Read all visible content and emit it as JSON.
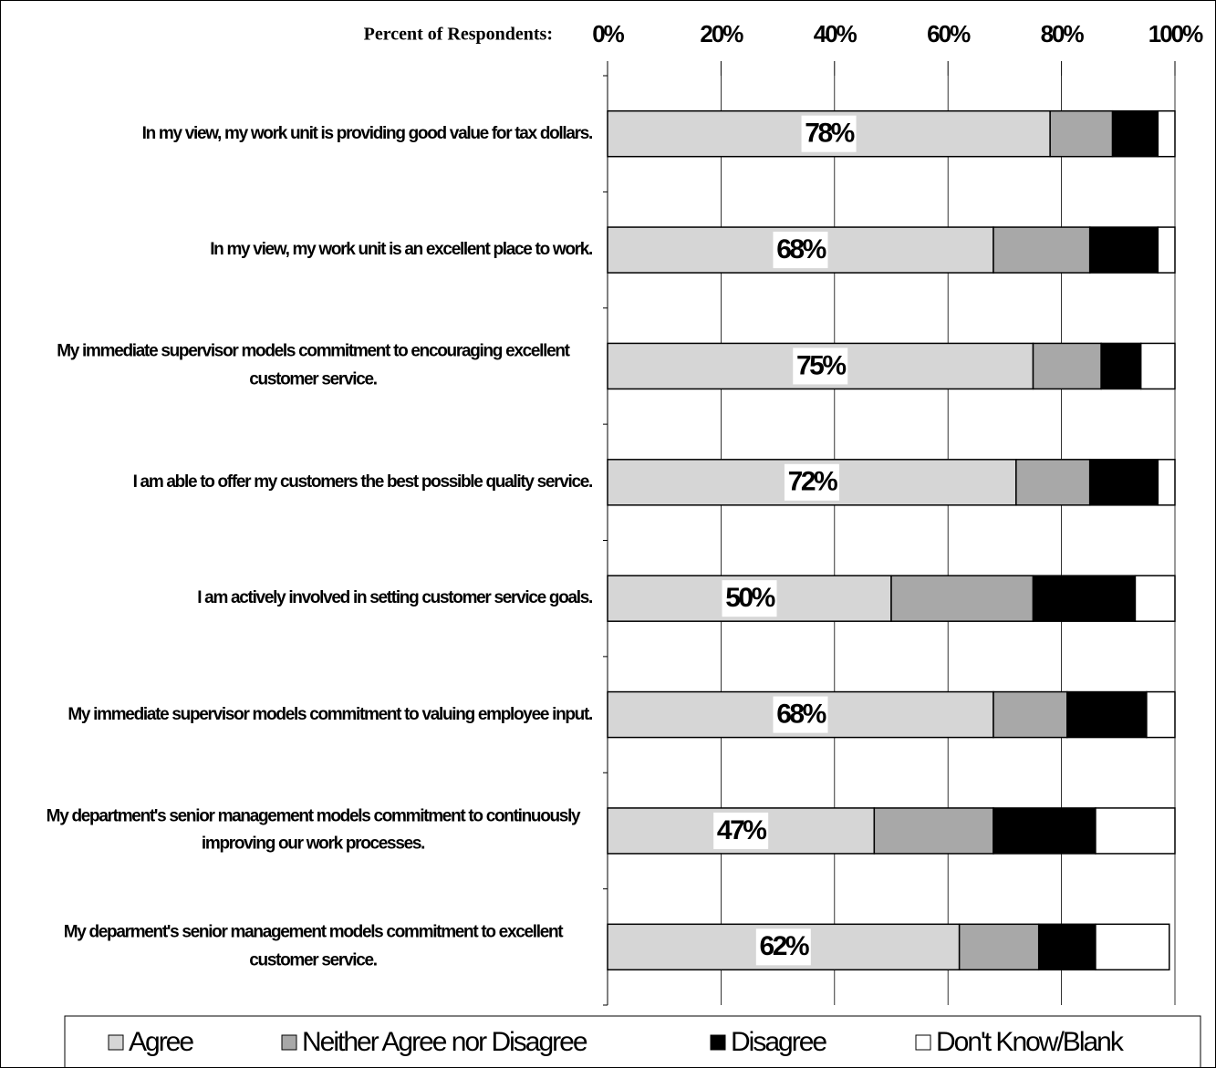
{
  "chart_data": {
    "type": "stacked-bar-horizontal",
    "x_label": "Percent of Respondents:",
    "categories": [
      "In my view, my work unit is providing good value for tax dollars.",
      "In my view, my work unit is an excellent place to work.",
      "My immediate supervisor models commitment to encouraging excellent customer service.",
      "I am able to offer my customers the best possible quality service.",
      "I am actively involved in setting customer service goals.",
      "My immediate supervisor models commitment to valuing employee input.",
      "My department's senior management models commitment to continuously improving our work processes.",
      "My deparment's senior management models commitment to excellent customer service."
    ],
    "series": [
      {
        "name": "Agree",
        "color": "#d6d6d6",
        "values": [
          78,
          68,
          75,
          72,
          50,
          68,
          47,
          62
        ],
        "value_labels": [
          "78%",
          "68%",
          "75%",
          "72%",
          "50%",
          "68%",
          "47%",
          "62%"
        ]
      },
      {
        "name": "Neither Agree nor Disagree",
        "color": "#a8a8a8",
        "values": [
          11,
          17,
          12,
          13,
          25,
          13,
          21,
          14
        ]
      },
      {
        "name": "Disagree",
        "color": "#000000",
        "values": [
          8,
          12,
          7,
          12,
          18,
          14,
          18,
          10
        ]
      },
      {
        "name": "Don't Know/Blank",
        "color": "#ffffff",
        "values": [
          3,
          3,
          6,
          3,
          7,
          5,
          14,
          13
        ]
      }
    ],
    "xlim": [
      0,
      100
    ],
    "xticks": [
      {
        "value": 0,
        "label": "0%"
      },
      {
        "value": 20,
        "label": "20%"
      },
      {
        "value": 40,
        "label": "40%"
      },
      {
        "value": 60,
        "label": "60%"
      },
      {
        "value": 80,
        "label": "80%"
      },
      {
        "value": 100,
        "label": "100%"
      }
    ],
    "grid": true,
    "legend": "bottom"
  }
}
